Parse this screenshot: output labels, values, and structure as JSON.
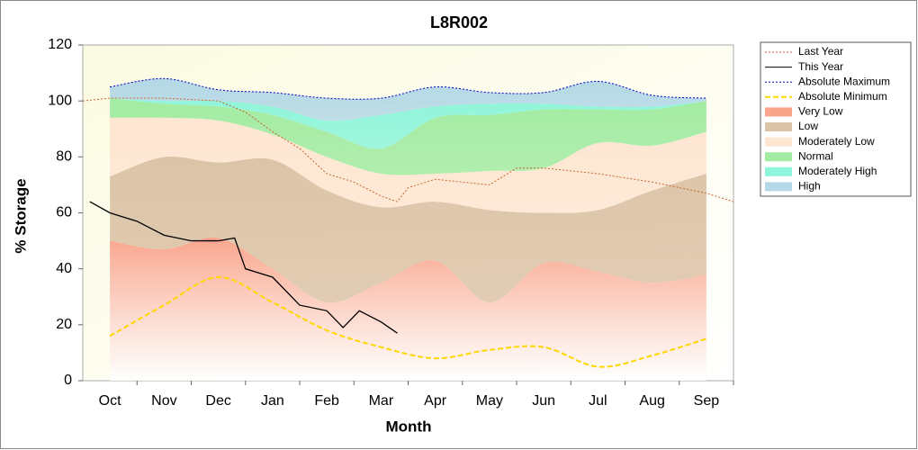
{
  "chart_data": {
    "type": "stacked-area-with-lines",
    "title": "L8R002",
    "x_label": "Month",
    "y_label": "% Storage",
    "xlim": [
      -0.5,
      11.5
    ],
    "ylim": [
      0,
      120
    ],
    "xticks": [
      {
        "value": 0,
        "label": "Oct"
      },
      {
        "value": 1,
        "label": "Nov"
      },
      {
        "value": 2,
        "label": "Dec"
      },
      {
        "value": 3,
        "label": "Jan"
      },
      {
        "value": 4,
        "label": "Feb"
      },
      {
        "value": 5,
        "label": "Mar"
      },
      {
        "value": 6,
        "label": "Apr"
      },
      {
        "value": 7,
        "label": "May"
      },
      {
        "value": 8,
        "label": "Jun"
      },
      {
        "value": 9,
        "label": "Jul"
      },
      {
        "value": 10,
        "label": "Aug"
      },
      {
        "value": 11,
        "label": "Sep"
      }
    ],
    "yticks": [
      0,
      20,
      40,
      60,
      80,
      100,
      120
    ],
    "series": [
      {
        "name": "Last Year",
        "kind": "line",
        "dash": "2,2",
        "color": "#c8642d",
        "x": [
          -0.5,
          0,
          1,
          2,
          2.5,
          3,
          3.5,
          4,
          4.5,
          5,
          5.3,
          5.5,
          6,
          7,
          7.5,
          8,
          9,
          10,
          11,
          11.5
        ],
        "values": [
          100,
          101,
          101,
          100,
          96,
          89,
          83,
          74,
          71,
          66,
          64,
          69,
          72,
          70,
          76,
          76,
          74,
          71,
          67,
          64
        ]
      },
      {
        "name": "This Year",
        "kind": "line",
        "dash": "none",
        "color": "#000000",
        "x": [
          -0.37,
          0,
          0.5,
          1,
          1.5,
          2,
          2.3,
          2.5,
          3,
          3.5,
          4,
          4.3,
          4.6,
          5,
          5.3
        ],
        "values": [
          64,
          60,
          57,
          52,
          50,
          50,
          51,
          40,
          37,
          27,
          25,
          19,
          25,
          21,
          17
        ]
      },
      {
        "name": "Absolute Maximum",
        "kind": "line",
        "dash": "2,2",
        "color": "#0000c0",
        "x": [
          0,
          1,
          2,
          3,
          4,
          5,
          6,
          7,
          8,
          9,
          10,
          11
        ],
        "values": [
          105,
          108,
          104,
          103,
          101,
          101,
          105,
          103,
          103,
          107,
          102,
          101
        ]
      },
      {
        "name": "Absolute Minimum",
        "kind": "line",
        "dash": "6,3",
        "color": "#ffd700",
        "x": [
          0,
          1,
          2,
          3,
          4,
          5,
          6,
          7,
          8,
          9,
          10,
          11
        ],
        "values": [
          16,
          27,
          37,
          28,
          18,
          12,
          8,
          11,
          12,
          5,
          9,
          15
        ]
      },
      {
        "name": "Very Low",
        "kind": "band",
        "color": "#f9a58c",
        "x": [
          0,
          1,
          2,
          3,
          4,
          5,
          6,
          7,
          8,
          9,
          10,
          11
        ],
        "values": [
          50,
          47,
          51,
          40,
          28,
          35,
          43,
          28,
          42,
          39,
          35,
          38
        ]
      },
      {
        "name": "Low",
        "kind": "band",
        "color": "#dcc4a8",
        "x": [
          0,
          1,
          2,
          3,
          4,
          5,
          6,
          7,
          8,
          9,
          10,
          11
        ],
        "values": [
          23,
          33,
          27,
          39,
          40,
          27,
          21,
          33,
          18,
          22,
          33,
          36
        ]
      },
      {
        "name": "Moderately Low",
        "kind": "band",
        "color": "#fde6d2",
        "x": [
          0,
          1,
          2,
          3,
          4,
          5,
          6,
          7,
          8,
          9,
          10,
          11
        ],
        "values": [
          21,
          14,
          15,
          9,
          12,
          12,
          10,
          14,
          16,
          24,
          16,
          15
        ]
      },
      {
        "name": "Normal",
        "kind": "band",
        "color": "#a3eba3",
        "x": [
          0,
          1,
          2,
          3,
          4,
          5,
          6,
          7,
          8,
          9,
          10,
          11
        ],
        "values": [
          7,
          5,
          5,
          7,
          9,
          9,
          20,
          20,
          21,
          12,
          13,
          11
        ]
      },
      {
        "name": "Moderately High",
        "kind": "band",
        "color": "#8ff5da",
        "x": [
          0,
          1,
          2,
          3,
          4,
          5,
          6,
          7,
          8,
          9,
          10,
          11
        ],
        "values": [
          0,
          1,
          2,
          3,
          4,
          12,
          4,
          4,
          2,
          1,
          1,
          0
        ]
      },
      {
        "name": "High",
        "kind": "band",
        "color": "#b4d8e6",
        "x": [
          0,
          1,
          2,
          3,
          4,
          5,
          6,
          7,
          8,
          9,
          10,
          11
        ],
        "values": [
          4,
          8,
          4,
          5,
          8,
          6,
          7,
          4,
          4,
          9,
          4,
          1
        ]
      }
    ]
  }
}
